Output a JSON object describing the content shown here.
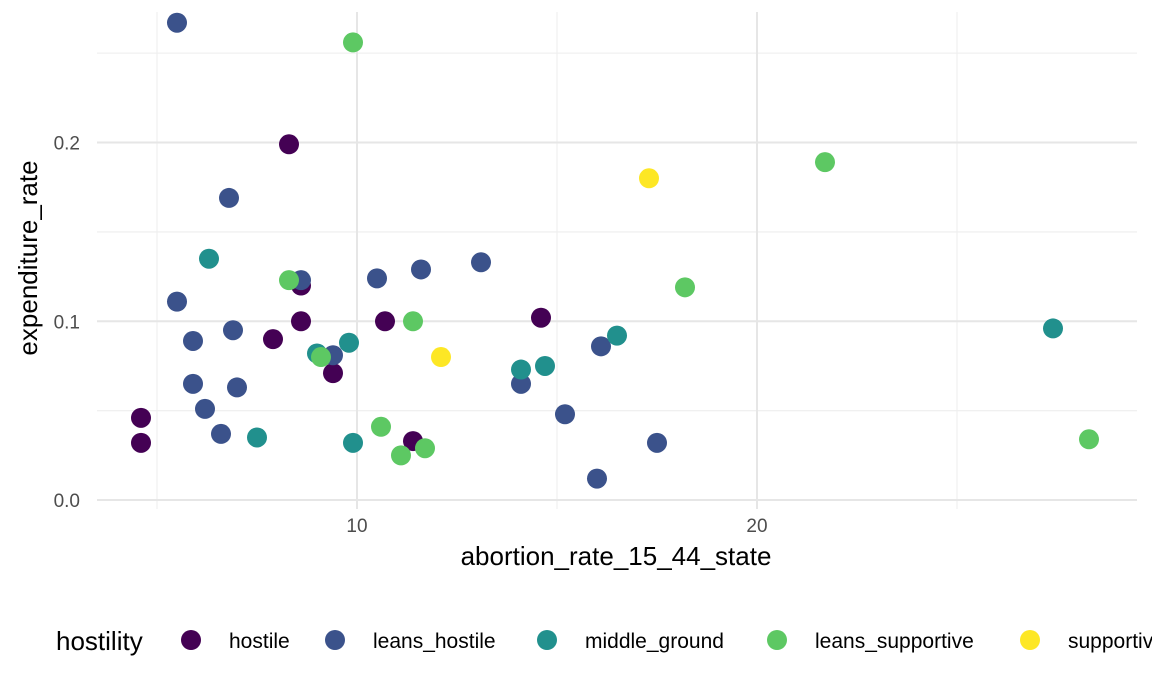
{
  "chart_data": {
    "type": "scatter",
    "title": "",
    "xlabel": "abortion_rate_15_44_state",
    "ylabel": "expenditure_rate",
    "xlim": [
      3.5,
      29.5
    ],
    "ylim": [
      -0.005,
      0.273
    ],
    "x_ticks": [
      {
        "value": 10,
        "label": "10"
      },
      {
        "value": 20,
        "label": "20"
      }
    ],
    "x_minor_ticks": [
      5,
      15,
      25
    ],
    "y_ticks": [
      {
        "value": 0.0,
        "label": "0.0"
      },
      {
        "value": 0.1,
        "label": "0.1"
      },
      {
        "value": 0.2,
        "label": "0.2"
      }
    ],
    "y_minor_ticks": [
      0.05,
      0.15,
      0.25
    ],
    "grid": true,
    "legend": {
      "title": "hostility",
      "position": "bottom"
    },
    "series": [
      {
        "name": "hostile",
        "color": "#440154",
        "points": [
          {
            "x": 4.6,
            "y": 0.046
          },
          {
            "x": 4.6,
            "y": 0.032
          },
          {
            "x": 8.3,
            "y": 0.199
          },
          {
            "x": 8.6,
            "y": 0.12
          },
          {
            "x": 8.6,
            "y": 0.1
          },
          {
            "x": 7.9,
            "y": 0.09
          },
          {
            "x": 9.4,
            "y": 0.071
          },
          {
            "x": 10.7,
            "y": 0.1
          },
          {
            "x": 11.4,
            "y": 0.033
          },
          {
            "x": 14.6,
            "y": 0.102
          }
        ]
      },
      {
        "name": "leans_hostile",
        "color": "#3b528b",
        "points": [
          {
            "x": 5.5,
            "y": 0.267
          },
          {
            "x": 5.5,
            "y": 0.111
          },
          {
            "x": 5.9,
            "y": 0.089
          },
          {
            "x": 5.9,
            "y": 0.065
          },
          {
            "x": 6.2,
            "y": 0.051
          },
          {
            "x": 6.6,
            "y": 0.037
          },
          {
            "x": 6.8,
            "y": 0.169
          },
          {
            "x": 6.9,
            "y": 0.095
          },
          {
            "x": 7.0,
            "y": 0.063
          },
          {
            "x": 8.6,
            "y": 0.123
          },
          {
            "x": 9.4,
            "y": 0.081
          },
          {
            "x": 10.5,
            "y": 0.124
          },
          {
            "x": 11.6,
            "y": 0.129
          },
          {
            "x": 13.1,
            "y": 0.133
          },
          {
            "x": 14.1,
            "y": 0.065
          },
          {
            "x": 15.2,
            "y": 0.048
          },
          {
            "x": 16.1,
            "y": 0.086
          },
          {
            "x": 16.0,
            "y": 0.012
          },
          {
            "x": 17.5,
            "y": 0.032
          }
        ]
      },
      {
        "name": "middle_ground",
        "color": "#21908d",
        "points": [
          {
            "x": 6.3,
            "y": 0.135
          },
          {
            "x": 7.5,
            "y": 0.035
          },
          {
            "x": 9.0,
            "y": 0.082
          },
          {
            "x": 9.8,
            "y": 0.088
          },
          {
            "x": 9.9,
            "y": 0.032
          },
          {
            "x": 14.1,
            "y": 0.073
          },
          {
            "x": 14.7,
            "y": 0.075
          },
          {
            "x": 16.5,
            "y": 0.092
          },
          {
            "x": 27.4,
            "y": 0.096
          }
        ]
      },
      {
        "name": "leans_supportive",
        "color": "#5dc863",
        "points": [
          {
            "x": 9.9,
            "y": 0.256
          },
          {
            "x": 8.3,
            "y": 0.123
          },
          {
            "x": 9.1,
            "y": 0.08
          },
          {
            "x": 10.6,
            "y": 0.041
          },
          {
            "x": 11.1,
            "y": 0.025
          },
          {
            "x": 11.4,
            "y": 0.1
          },
          {
            "x": 11.7,
            "y": 0.029
          },
          {
            "x": 18.2,
            "y": 0.119
          },
          {
            "x": 21.7,
            "y": 0.189
          },
          {
            "x": 28.3,
            "y": 0.034
          }
        ]
      },
      {
        "name": "supportive",
        "color": "#fde725",
        "points": [
          {
            "x": 17.3,
            "y": 0.18
          },
          {
            "x": 12.1,
            "y": 0.08
          }
        ]
      }
    ]
  }
}
